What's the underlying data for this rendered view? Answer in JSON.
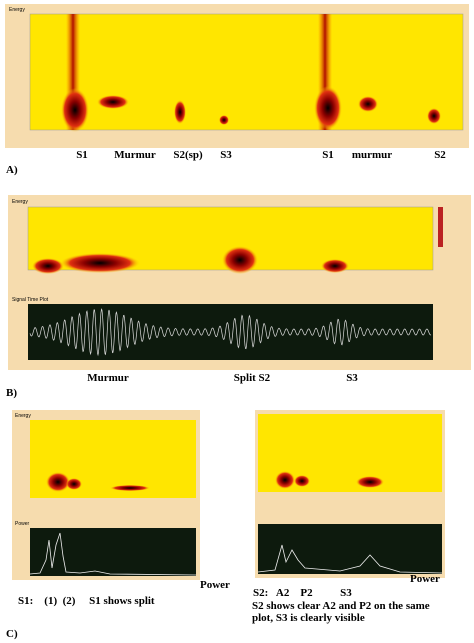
{
  "panel_a": {
    "header": "Energy",
    "labels": [
      "S1",
      "Murmur",
      "S2(sp)",
      "S3",
      "S1",
      "murmur",
      "S2"
    ],
    "tag": "A)"
  },
  "panel_b": {
    "header": "Energy",
    "signal_header": "Signal Time Plot",
    "labels": [
      "Murmur",
      "Split S2",
      "S3"
    ],
    "tag": "B)"
  },
  "panel_c": {
    "left": {
      "header": "Energy",
      "power_header": "Power",
      "power": "Power",
      "caption": "S1:    (1)  (2)     S1 shows split"
    },
    "right": {
      "power": "Power",
      "caption": "S2:   A2    P2          S3",
      "note": "S2 shows clear A2 and P2 on the same plot, S3 is clearly visible"
    },
    "tag": "C)"
  }
}
